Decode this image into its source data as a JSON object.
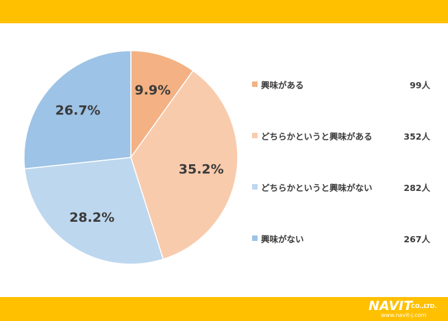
{
  "colors": {
    "band": "#FFC000",
    "slices": [
      "#F4B183",
      "#F8CBAD",
      "#BDD7EE",
      "#9DC3E6"
    ]
  },
  "logo": {
    "main": "NAVIT",
    "company": "CO.,LTD.",
    "url": "www.navit-j.com"
  },
  "chart_data": {
    "type": "pie",
    "labels": [
      "興味がある",
      "どちらかというと興味がある",
      "どちらかというと興味がない",
      "興味がない"
    ],
    "values": [
      99,
      352,
      282,
      267
    ],
    "percent_labels": [
      "9.9%",
      "35.2%",
      "28.2%",
      "26.7%"
    ],
    "counts": [
      "99人",
      "352人",
      "282人",
      "267人"
    ],
    "legend_position": "right",
    "start_angle": "12 o'clock",
    "direction": "clockwise"
  }
}
